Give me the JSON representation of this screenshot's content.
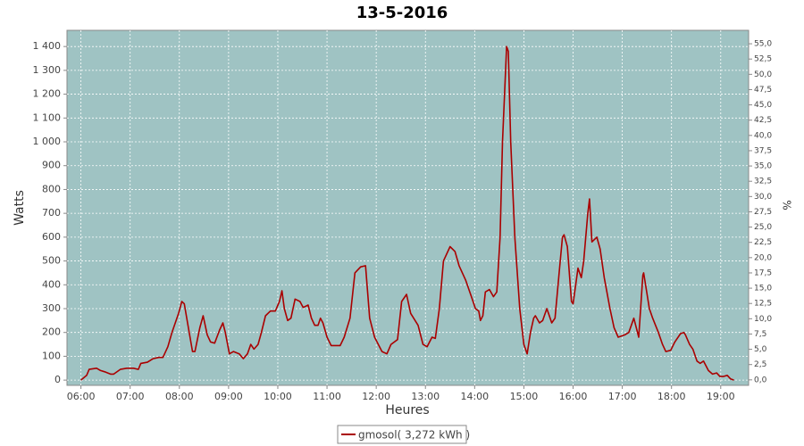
{
  "chart_data": {
    "type": "line",
    "title": "13-5-2016",
    "x_label": "Heures",
    "y_label": "Watts",
    "y2_label": "%",
    "x": [
      "06:00",
      "06:07",
      "06:10",
      "06:19",
      "06:24",
      "06:29",
      "06:36",
      "06:40",
      "06:48",
      "06:56",
      "07:04",
      "07:10",
      "07:13",
      "07:21",
      "07:28",
      "07:35",
      "07:40",
      "07:46",
      "07:51",
      "07:59",
      "08:03",
      "08:06",
      "08:12",
      "08:16",
      "08:19",
      "08:25",
      "08:29",
      "08:34",
      "08:38",
      "08:43",
      "08:49",
      "08:53",
      "08:56",
      "09:01",
      "09:06",
      "09:13",
      "09:18",
      "09:23",
      "09:27",
      "09:31",
      "09:36",
      "09:40",
      "09:45",
      "09:51",
      "09:57",
      "10:02",
      "10:05",
      "10:08",
      "10:12",
      "10:16",
      "10:21",
      "10:27",
      "10:31",
      "10:37",
      "10:41",
      "10:45",
      "10:49",
      "10:52",
      "10:55",
      "11:00",
      "11:05",
      "11:16",
      "11:21",
      "11:28",
      "11:34",
      "11:41",
      "11:47",
      "11:52",
      "11:58",
      "12:07",
      "12:13",
      "12:18",
      "12:26",
      "12:31",
      "12:37",
      "12:42",
      "12:51",
      "12:57",
      "13:02",
      "13:08",
      "13:12",
      "13:17",
      "13:22",
      "13:30",
      "13:36",
      "13:41",
      "13:49",
      "13:56",
      "14:01",
      "14:05",
      "14:07",
      "14:10",
      "14:13",
      "14:18",
      "14:23",
      "14:27",
      "14:31",
      "14:34",
      "14:39",
      "14:41",
      "14:44",
      "14:49",
      "14:55",
      "15:00",
      "15:04",
      "15:08",
      "15:12",
      "15:14",
      "15:19",
      "15:23",
      "15:28",
      "15:30",
      "15:34",
      "15:38",
      "15:43",
      "15:47",
      "15:49",
      "15:53",
      "15:58",
      "16:00",
      "16:06",
      "16:10",
      "16:13",
      "16:18",
      "16:20",
      "16:23",
      "16:29",
      "16:33",
      "16:38",
      "16:45",
      "16:50",
      "16:55",
      "17:03",
      "17:08",
      "17:14",
      "17:20",
      "17:25",
      "17:26",
      "17:33",
      "17:37",
      "17:44",
      "17:49",
      "17:53",
      "17:59",
      "18:04",
      "18:11",
      "18:15",
      "18:17",
      "18:22",
      "18:26",
      "18:31",
      "18:35",
      "18:39",
      "18:45",
      "18:50",
      "18:55",
      "18:59",
      "19:03",
      "19:08",
      "19:12",
      "19:16"
    ],
    "series": [
      {
        "name": "gmosol( 3,272 kWh )",
        "color": "#aa0000",
        "values": [
          0,
          20,
          45,
          50,
          40,
          35,
          25,
          25,
          45,
          50,
          50,
          45,
          70,
          75,
          90,
          95,
          95,
          140,
          200,
          280,
          330,
          320,
          200,
          120,
          120,
          220,
          270,
          190,
          160,
          155,
          210,
          240,
          200,
          110,
          120,
          110,
          90,
          110,
          150,
          130,
          150,
          200,
          270,
          290,
          290,
          330,
          375,
          300,
          250,
          260,
          340,
          330,
          305,
          315,
          260,
          230,
          230,
          260,
          240,
          180,
          145,
          145,
          180,
          260,
          450,
          475,
          480,
          260,
          180,
          120,
          110,
          150,
          170,
          330,
          360,
          280,
          230,
          150,
          140,
          180,
          175,
          300,
          500,
          560,
          540,
          480,
          420,
          350,
          300,
          290,
          250,
          270,
          370,
          380,
          350,
          370,
          600,
          1000,
          1400,
          1380,
          1000,
          600,
          300,
          150,
          110,
          200,
          260,
          270,
          240,
          250,
          300,
          280,
          240,
          260,
          450,
          600,
          610,
          560,
          330,
          320,
          470,
          430,
          500,
          700,
          760,
          580,
          600,
          550,
          430,
          300,
          220,
          180,
          190,
          200,
          260,
          180,
          440,
          450,
          300,
          260,
          200,
          150,
          120,
          125,
          160,
          195,
          200,
          190,
          150,
          130,
          80,
          70,
          80,
          40,
          25,
          30,
          15,
          15,
          20,
          5,
          0
        ]
      }
    ],
    "xlim": [
      "05:43",
      "19:34"
    ],
    "xticks": [
      "06:00",
      "07:00",
      "08:00",
      "09:00",
      "10:00",
      "11:00",
      "12:00",
      "13:00",
      "14:00",
      "15:00",
      "16:00",
      "17:00",
      "18:00",
      "19:00"
    ],
    "ylim": [
      -22,
      1468
    ],
    "yticks": [
      0,
      100,
      200,
      300,
      400,
      500,
      600,
      700,
      800,
      900,
      {
        "value": 1000,
        "label": "1 000"
      },
      {
        "value": 1100,
        "label": "1 100"
      },
      {
        "value": 1200,
        "label": "1 200"
      },
      {
        "value": 1300,
        "label": "1 300"
      },
      {
        "value": 1400,
        "label": "1 400"
      }
    ],
    "y2lim": [
      -0.9,
      57.2
    ],
    "y2ticks": [
      {
        "value": 0,
        "label": "0,0"
      },
      {
        "value": 2.5,
        "label": "2,5"
      },
      {
        "value": 5,
        "label": "5,0"
      },
      {
        "value": 7.5,
        "label": "7,5"
      },
      {
        "value": 10,
        "label": "10,0"
      },
      {
        "value": 12.5,
        "label": "12,5"
      },
      {
        "value": 15,
        "label": "15,0"
      },
      {
        "value": 17.5,
        "label": "17,5"
      },
      {
        "value": 20,
        "label": "20,0"
      },
      {
        "value": 22.5,
        "label": "22,5"
      },
      {
        "value": 25,
        "label": "25,0"
      },
      {
        "value": 27.5,
        "label": "27,5"
      },
      {
        "value": 30,
        "label": "30,0"
      },
      {
        "value": 32.5,
        "label": "32,5"
      },
      {
        "value": 35,
        "label": "35,0"
      },
      {
        "value": 37.5,
        "label": "37,5"
      },
      {
        "value": 40,
        "label": "40,0"
      },
      {
        "value": 42.5,
        "label": "42,5"
      },
      {
        "value": 45,
        "label": "45,0"
      },
      {
        "value": 47.5,
        "label": "47,5"
      },
      {
        "value": 50,
        "label": "50,0"
      },
      {
        "value": 52.5,
        "label": "52,5"
      },
      {
        "value": 55,
        "label": "55,0"
      }
    ],
    "grid": true,
    "plot_background": "#9fc3c3",
    "legend": "bottom"
  }
}
